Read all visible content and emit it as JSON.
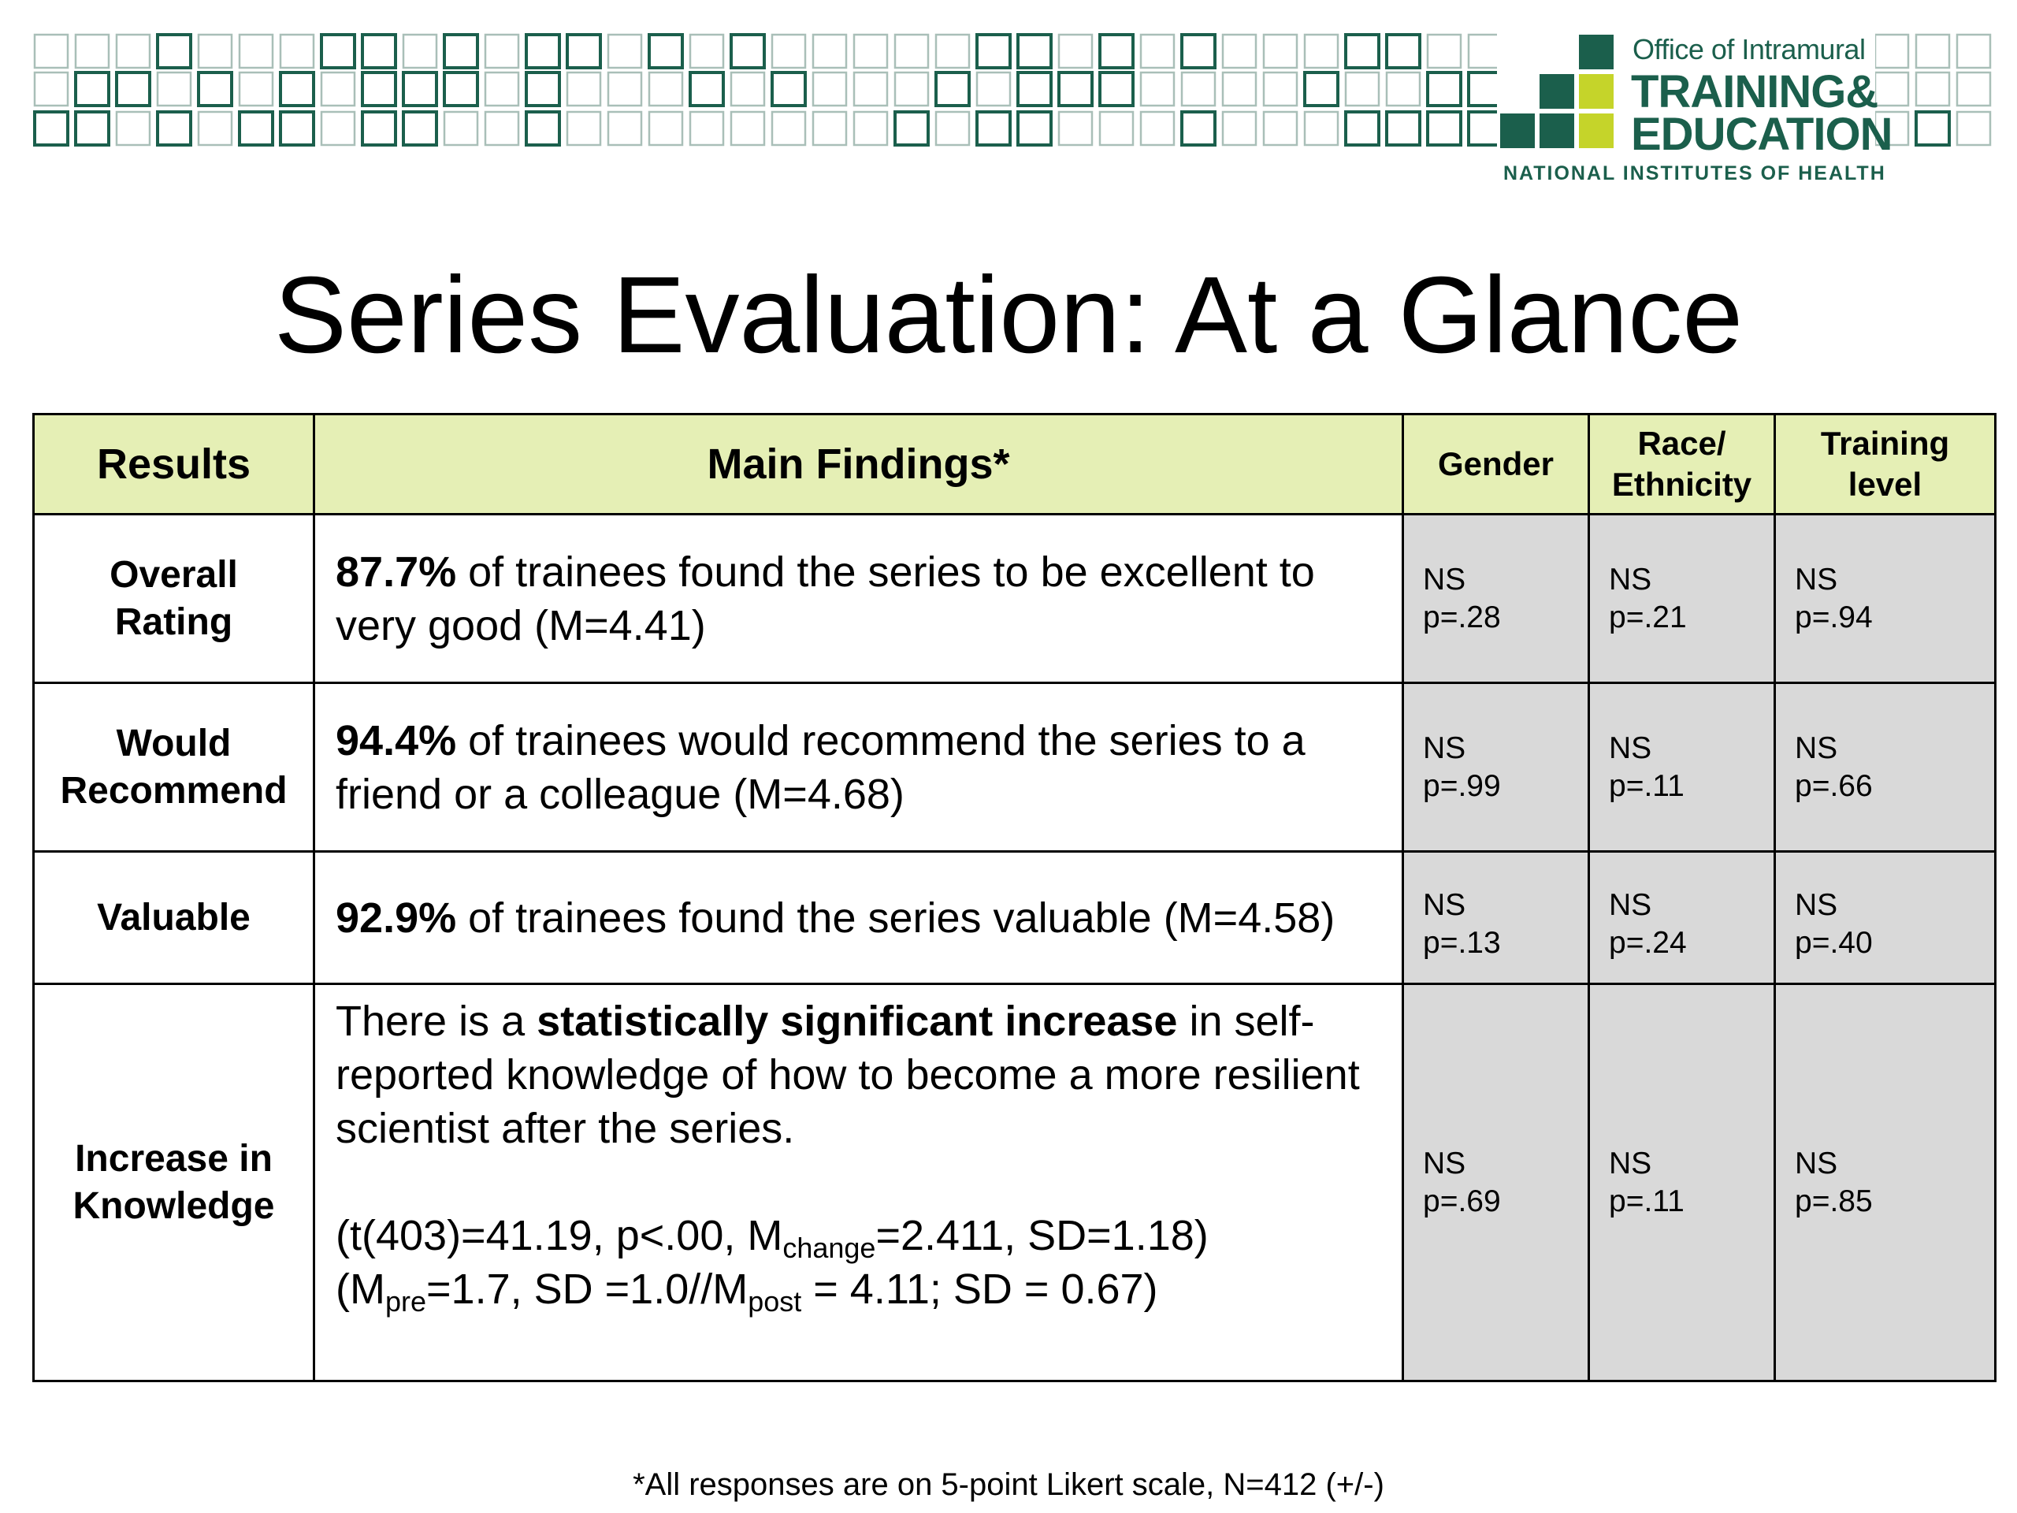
{
  "logo": {
    "line1": "Office of Intramural",
    "line2": "TRAINING&",
    "line3": "EDUCATION",
    "line4": "NATIONAL INSTITUTES OF HEALTH",
    "brand_dark": "#1b5f4c",
    "brand_lime": "#c5d42a"
  },
  "title": "Series Evaluation: At a Glance",
  "table": {
    "headers": {
      "results": "Results",
      "findings": "Main Findings*",
      "gender": "Gender",
      "race_line1": "Race/",
      "race_line2": "Ethnicity",
      "training_line1": "Training",
      "training_line2": "level"
    },
    "rows": [
      {
        "label_line1": "Overall",
        "label_line2": "Rating",
        "pct": "87.7%",
        "text": " of trainees found the series to be excellent to very good (M=4.41)",
        "gender_ns": "NS",
        "gender_p": "p=.28",
        "race_ns": "NS",
        "race_p": "p=.21",
        "training_ns": "NS",
        "training_p": "p=.94"
      },
      {
        "label_line1": "Would",
        "label_line2": "Recommend",
        "pct": "94.4%",
        "text": " of trainees would recommend the series to a friend or a colleague (M=4.68)",
        "gender_ns": "NS",
        "gender_p": "p=.99",
        "race_ns": "NS",
        "race_p": "p=.11",
        "training_ns": "NS",
        "training_p": "p=.66"
      },
      {
        "label_line1": "Valuable",
        "pct": "92.9%",
        "text": " of trainees found the series valuable (M=4.58)",
        "gender_ns": "NS",
        "gender_p": "p=.13",
        "race_ns": "NS",
        "race_p": "p=.24",
        "training_ns": "NS",
        "training_p": "p=.40"
      },
      {
        "label_line1": "Increase in",
        "label_line2": "Knowledge",
        "text_pre": "There is a ",
        "text_bold": "statistically significant increase",
        "text_post": " in self-reported knowledge of how to become a more resilient scientist after the series.",
        "f1_a": "(t(403)=41.19, p<.00, M",
        "f1_sub": "change",
        "f1_b": "=2.411, SD=1.18)",
        "f2_a": "(M",
        "f2_sub1": "pre",
        "f2_b": "=1.7, SD =1.0//M",
        "f2_sub2": "post",
        "f2_c": " = 4.11; SD = 0.67)",
        "gender_ns": "NS",
        "gender_p": "p=.69",
        "race_ns": "NS",
        "race_p": "p=.11",
        "training_ns": "NS",
        "training_p": "p=.85"
      }
    ]
  },
  "footnote": "*All responses are on 5-point Likert scale, N=412 (+/-)",
  "colors": {
    "header_fill": "#e5efb5",
    "stat_fill": "#d9d9d9",
    "square_outline": "#1b5f4c"
  }
}
